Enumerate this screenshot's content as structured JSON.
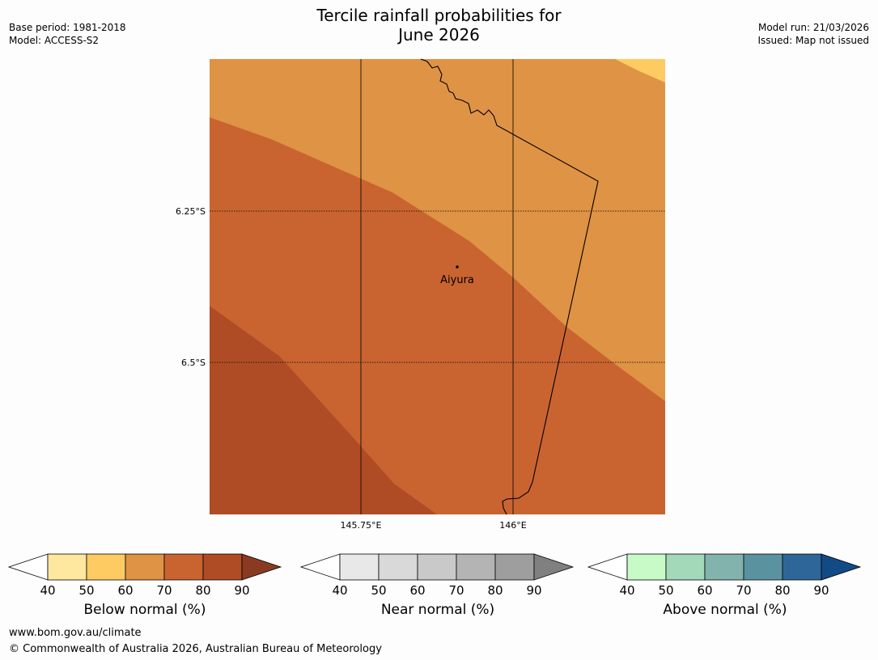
{
  "header": {
    "title_line1": "Tercile rainfall probabilities for",
    "title_line2": "June 2026",
    "base_period": "Base period: 1981-2018",
    "model": "Model: ACCESS-S2",
    "model_run": "Model run: 21/03/2026",
    "issued": "Issued: Map not issued"
  },
  "map": {
    "lat_labels": [
      "6.25°S",
      "6.5°S"
    ],
    "lon_labels": [
      "145.75°E",
      "146°E"
    ],
    "place": "Aiyura",
    "colors": {
      "c50_60": "#fecb63",
      "c60_70": "#df9344",
      "c70_80": "#c96431",
      "c80_90": "#b04c25"
    }
  },
  "colorbars": [
    {
      "label": "Below normal (%)",
      "ticks": [
        "40",
        "50",
        "60",
        "70",
        "80",
        "90"
      ],
      "colors": [
        "#ffffff",
        "#fee89f",
        "#fecb63",
        "#df9344",
        "#c96431",
        "#b04c25",
        "#8a3a22"
      ]
    },
    {
      "label": "Near normal (%)",
      "ticks": [
        "40",
        "50",
        "60",
        "70",
        "80",
        "90"
      ],
      "colors": [
        "#ffffff",
        "#e8e8e8",
        "#d9d9d9",
        "#c9c9c9",
        "#b4b4b4",
        "#9e9e9e",
        "#808080"
      ]
    },
    {
      "label": "Above normal (%)",
      "ticks": [
        "40",
        "50",
        "60",
        "70",
        "80",
        "90"
      ],
      "colors": [
        "#ffffff",
        "#c8fac8",
        "#a3d8b8",
        "#82b4ad",
        "#5b92a0",
        "#2f6699",
        "#124a85"
      ]
    }
  ],
  "footer": {
    "url": "www.bom.gov.au/climate",
    "copyright": "© Commonwealth of Australia 2026, Australian Bureau of Meteorology"
  }
}
